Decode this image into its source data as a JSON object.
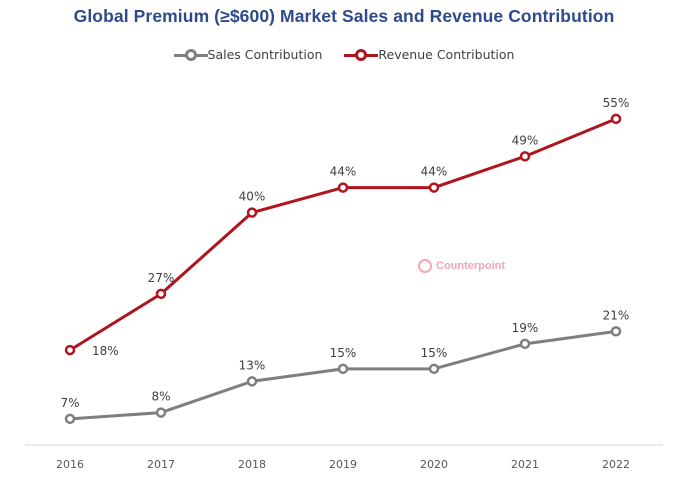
{
  "colors": {
    "title": "#2e4a8c",
    "sales": "#7f7f7f",
    "revenue": "#b0141e",
    "axis": "#d9d9d9",
    "text": "#404040"
  },
  "watermark": {
    "text": "Counterpoint",
    "icon": "counterpoint-logo-icon"
  },
  "chart_data": {
    "type": "line",
    "title": "Global Premium (≥$600) Market Sales and Revenue Contribution",
    "xlabel": "",
    "ylabel": "",
    "categories": [
      "2016",
      "2017",
      "2018",
      "2019",
      "2020",
      "2021",
      "2022"
    ],
    "ylim": [
      0,
      60
    ],
    "grid": false,
    "legend": "top-center",
    "series": [
      {
        "name": "Sales Contribution",
        "values": [
          7,
          8,
          13,
          15,
          15,
          19,
          21
        ],
        "labels": [
          "7%",
          "8%",
          "13%",
          "15%",
          "15%",
          "19%",
          "21%"
        ]
      },
      {
        "name": "Revenue Contribution",
        "values": [
          18,
          27,
          40,
          44,
          44,
          49,
          55
        ],
        "labels": [
          "18%",
          "27%",
          "40%",
          "44%",
          "44%",
          "49%",
          "55%"
        ]
      }
    ]
  }
}
